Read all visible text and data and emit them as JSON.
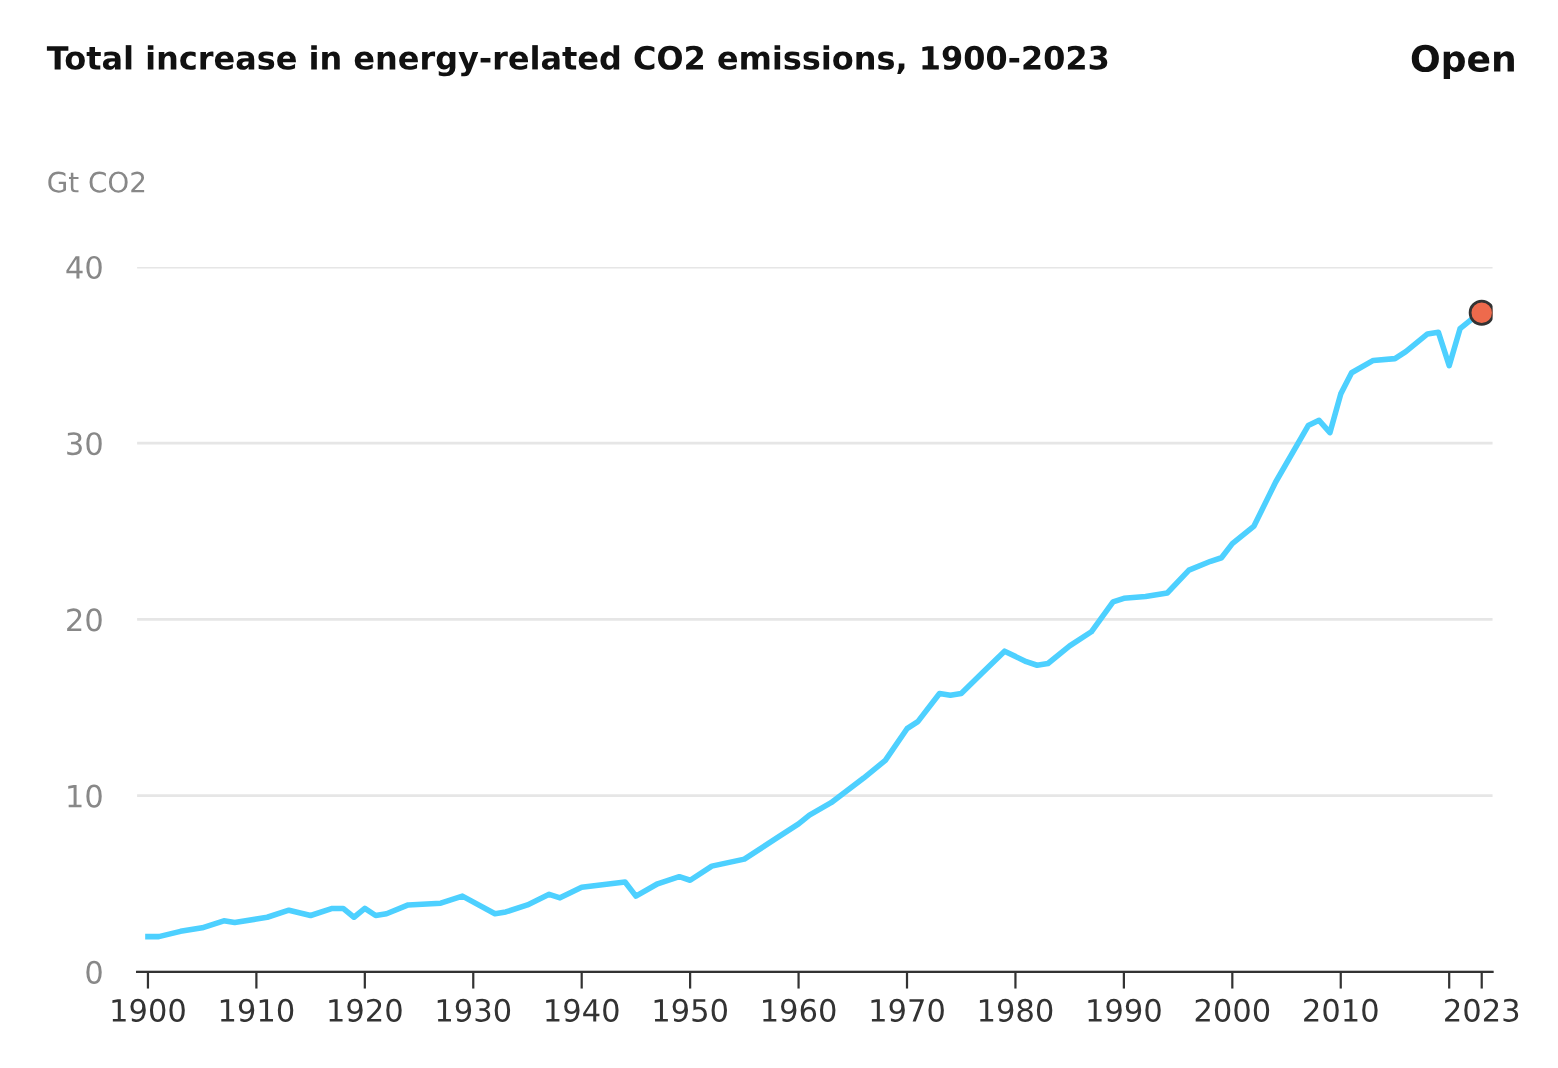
{
  "chart_data": {
    "type": "line",
    "title": "Total increase in energy-related CO2 emissions, 1900-2023",
    "ylabel": "Gt CO2",
    "annotations": [
      "Open"
    ],
    "series": [
      {
        "color": "#4dd0ff",
        "x": [
          1900,
          1901,
          1903,
          1905,
          1907,
          1908,
          1910,
          1911,
          1913,
          1915,
          1917,
          1918,
          1919,
          1920,
          1921,
          1922,
          1924,
          1927,
          1928,
          1929,
          1932,
          1933,
          1935,
          1937,
          1938,
          1940,
          1944,
          1945,
          1947,
          1949,
          1950,
          1952,
          1955,
          1958,
          1960,
          1961,
          1963,
          1966,
          1968,
          1970,
          1971,
          1973,
          1974,
          1975,
          1977,
          1979,
          1981,
          1982,
          1983,
          1985,
          1987,
          1989,
          1990,
          1992,
          1994,
          1996,
          1998,
          1999,
          2000,
          2002,
          2004,
          2007,
          2008,
          2009,
          2010,
          2011,
          2013,
          2015,
          2016,
          2018,
          2019,
          2020,
          2021,
          2022,
          2023
        ],
        "values": [
          2.0,
          2.0,
          2.3,
          2.5,
          2.9,
          2.8,
          3.0,
          3.1,
          3.5,
          3.2,
          3.6,
          3.6,
          3.1,
          3.6,
          3.2,
          3.3,
          3.8,
          3.9,
          4.1,
          4.3,
          3.3,
          3.4,
          3.8,
          4.4,
          4.2,
          4.8,
          5.1,
          4.3,
          5.0,
          5.4,
          5.2,
          6.0,
          6.4,
          7.6,
          8.4,
          8.9,
          9.6,
          11.0,
          12.0,
          13.8,
          14.2,
          15.8,
          15.7,
          15.8,
          17.0,
          18.2,
          17.6,
          17.4,
          17.5,
          18.5,
          19.3,
          21.0,
          21.2,
          21.3,
          21.5,
          22.8,
          23.3,
          23.5,
          24.3,
          25.3,
          27.8,
          31.0,
          31.3,
          30.6,
          32.8,
          34.0,
          34.7,
          34.8,
          35.2,
          36.2,
          36.3,
          34.4,
          36.5,
          37.0,
          37.4
        ]
      },
      {
        "type": "scatter",
        "color": "#ee6a4c",
        "x": [
          2023
        ],
        "values": [
          37.4
        ]
      }
    ],
    "xlim": [
      1899,
      2024
    ],
    "xticks": [
      1900,
      1910,
      1920,
      1930,
      1940,
      1950,
      1960,
      1970,
      1980,
      1990,
      2000,
      2010,
      {
        "value": 2020,
        "label": null
      },
      2023
    ],
    "ylim": [
      0,
      40
    ],
    "yticks": [
      0,
      10,
      20,
      30,
      40
    ],
    "grid": "y",
    "legend": false
  }
}
